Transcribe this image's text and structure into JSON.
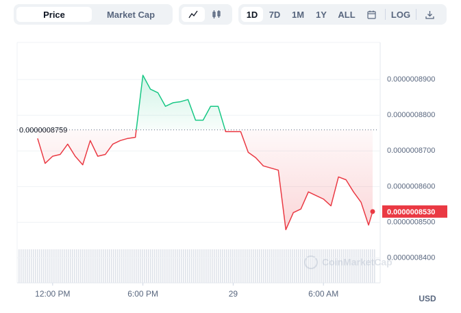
{
  "toolbar": {
    "tabs": [
      "Price",
      "Market Cap"
    ],
    "ranges": [
      "1D",
      "7D",
      "1M",
      "1Y",
      "ALL"
    ],
    "log_button": "LOG"
  },
  "chart_data": {
    "type": "line",
    "x": [
      11,
      11.5,
      12,
      12.5,
      13,
      13.5,
      14,
      14.5,
      15,
      15.5,
      16,
      16.5,
      17,
      17.5,
      18,
      18.5,
      19,
      19.5,
      20,
      20.5,
      21,
      21.5,
      22,
      22.5,
      23,
      23.5,
      24,
      24.5,
      25,
      25.5,
      26,
      26.5,
      27,
      27.5,
      28,
      28.5,
      29,
      29.5,
      30,
      30.5,
      31,
      31.5,
      32,
      32.5,
      33,
      33.27
    ],
    "values": [
      8.735e-07,
      8.665e-07,
      8.685e-07,
      8.69e-07,
      8.719e-07,
      8.685e-07,
      8.661e-07,
      8.729e-07,
      8.685e-07,
      8.69e-07,
      8.719e-07,
      8.729e-07,
      8.735e-07,
      8.738e-07,
      8.912e-07,
      8.873e-07,
      8.863e-07,
      8.825e-07,
      8.835e-07,
      8.838e-07,
      8.844e-07,
      8.786e-07,
      8.786e-07,
      8.825e-07,
      8.825e-07,
      8.754e-07,
      8.754e-07,
      8.754e-07,
      8.696e-07,
      8.681e-07,
      8.658e-07,
      8.652e-07,
      8.646e-07,
      8.479e-07,
      8.527e-07,
      8.537e-07,
      8.585e-07,
      8.575e-07,
      8.565e-07,
      8.546e-07,
      8.627e-07,
      8.619e-07,
      8.585e-07,
      8.556e-07,
      8.492e-07,
      8.53e-07
    ],
    "xlim": [
      9.64,
      33.68
    ],
    "xticks": [
      {
        "value": 12,
        "label": "12:00 PM"
      },
      {
        "value": 18,
        "label": "6:00 PM"
      },
      {
        "value": 24,
        "label": "29"
      },
      {
        "value": 30,
        "label": "6:00 AM"
      }
    ],
    "ylim": [
      8.33e-07,
      9.004e-07
    ],
    "yticks": [
      {
        "value": 8.4e-07,
        "label": "0.0000008400"
      },
      {
        "value": 8.5e-07,
        "label": "0.0000008500"
      },
      {
        "value": 8.6e-07,
        "label": "0.0000008600"
      },
      {
        "value": 8.7e-07,
        "label": "0.0000008700"
      },
      {
        "value": 8.8e-07,
        "label": "0.0000008800"
      },
      {
        "value": 8.9e-07,
        "label": "0.0000008900"
      }
    ],
    "grid": true,
    "colors": {
      "up": "#16c784",
      "down": "#ea3943"
    },
    "reference": {
      "value": 8.759e-07,
      "label": "0.0000008759"
    },
    "last_price": {
      "value": 8.53e-07,
      "label": "0.0000008530"
    },
    "y_unit": "USD",
    "watermark": "CoinMarketCap"
  }
}
